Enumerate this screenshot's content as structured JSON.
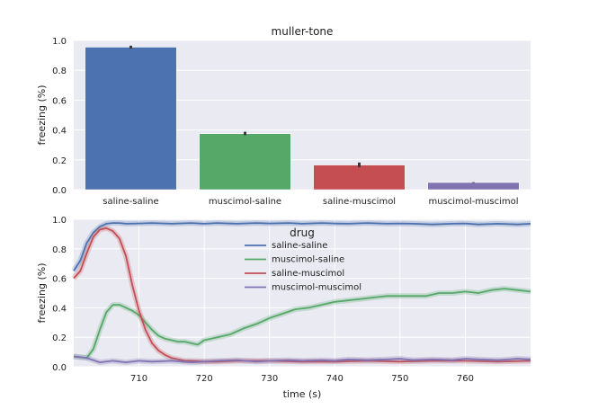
{
  "chart_data": [
    {
      "type": "bar",
      "title": "muller-tone",
      "ylabel": "freezing (%)",
      "xlabel": "",
      "ylim": [
        0,
        1.0
      ],
      "yticks": [
        "0.0",
        "0.2",
        "0.4",
        "0.6",
        "0.8",
        "1.0"
      ],
      "categories": [
        "saline-saline",
        "muscimol-saline",
        "saline-muscimol",
        "muscimol-muscimol"
      ],
      "values": [
        0.955,
        0.375,
        0.165,
        0.048
      ],
      "error": [
        [
          0.945,
          0.965
        ],
        [
          0.365,
          0.388
        ],
        [
          0.15,
          0.182
        ],
        [
          0.046,
          0.05
        ]
      ],
      "colors": [
        "#4c72b0",
        "#55a868",
        "#c44e52",
        "#8172b2"
      ],
      "grid": true
    },
    {
      "type": "line",
      "title": "",
      "xlabel": "time (s)",
      "ylabel": "freezing (%)",
      "xlim": [
        700,
        770
      ],
      "ylim": [
        0,
        1.0
      ],
      "xticks": [
        "710",
        "720",
        "730",
        "740",
        "750",
        "760"
      ],
      "yticks": [
        "0.0",
        "0.2",
        "0.4",
        "0.6",
        "0.8",
        "1.0"
      ],
      "legend": {
        "title": "drug",
        "position": "upper-center"
      },
      "grid": true,
      "series": [
        {
          "name": "saline-saline",
          "color": "#4c72b0",
          "x": [
            700,
            701,
            702,
            703,
            704,
            705,
            706,
            707,
            708,
            710,
            712,
            715,
            718,
            720,
            722,
            725,
            728,
            730,
            733,
            735,
            738,
            740,
            742,
            745,
            748,
            750,
            752,
            755,
            758,
            760,
            762,
            765,
            768,
            770
          ],
          "y": [
            0.65,
            0.72,
            0.84,
            0.91,
            0.95,
            0.97,
            0.975,
            0.975,
            0.97,
            0.972,
            0.975,
            0.97,
            0.975,
            0.97,
            0.975,
            0.97,
            0.975,
            0.972,
            0.975,
            0.97,
            0.975,
            0.972,
            0.97,
            0.975,
            0.97,
            0.972,
            0.97,
            0.965,
            0.97,
            0.972,
            0.965,
            0.97,
            0.965,
            0.97
          ]
        },
        {
          "name": "muscimol-saline",
          "color": "#55a868",
          "x": [
            700,
            702,
            703,
            704,
            705,
            706,
            707,
            708,
            709,
            710,
            711,
            712,
            713,
            714,
            715,
            716,
            717,
            718,
            719,
            720,
            722,
            724,
            726,
            728,
            730,
            732,
            734,
            736,
            738,
            740,
            742,
            744,
            746,
            748,
            750,
            752,
            754,
            756,
            758,
            760,
            762,
            764,
            766,
            768,
            770
          ],
          "y": [
            0.07,
            0.06,
            0.12,
            0.25,
            0.37,
            0.42,
            0.42,
            0.4,
            0.38,
            0.35,
            0.3,
            0.25,
            0.21,
            0.19,
            0.18,
            0.17,
            0.17,
            0.16,
            0.15,
            0.18,
            0.2,
            0.22,
            0.26,
            0.29,
            0.33,
            0.36,
            0.39,
            0.4,
            0.42,
            0.44,
            0.45,
            0.46,
            0.47,
            0.48,
            0.48,
            0.48,
            0.48,
            0.5,
            0.5,
            0.51,
            0.5,
            0.52,
            0.53,
            0.52,
            0.51
          ]
        },
        {
          "name": "saline-muscimol",
          "color": "#c44e52",
          "x": [
            700,
            701,
            702,
            703,
            704,
            705,
            706,
            707,
            708,
            709,
            710,
            711,
            712,
            713,
            714,
            715,
            716,
            717,
            718,
            720,
            722,
            725,
            730,
            735,
            740,
            745,
            750,
            755,
            760,
            765,
            770
          ],
          "y": [
            0.6,
            0.65,
            0.77,
            0.88,
            0.93,
            0.94,
            0.92,
            0.87,
            0.75,
            0.55,
            0.38,
            0.25,
            0.16,
            0.11,
            0.08,
            0.06,
            0.05,
            0.04,
            0.04,
            0.035,
            0.035,
            0.04,
            0.04,
            0.035,
            0.035,
            0.04,
            0.035,
            0.04,
            0.04,
            0.035,
            0.04
          ]
        },
        {
          "name": "muscimol-muscimol",
          "color": "#8172b2",
          "x": [
            700,
            702,
            704,
            706,
            708,
            710,
            712,
            715,
            718,
            720,
            722,
            725,
            728,
            730,
            733,
            735,
            738,
            740,
            742,
            745,
            748,
            750,
            752,
            755,
            758,
            760,
            762,
            765,
            768,
            770
          ],
          "y": [
            0.07,
            0.06,
            0.03,
            0.04,
            0.03,
            0.04,
            0.035,
            0.04,
            0.03,
            0.035,
            0.04,
            0.045,
            0.035,
            0.04,
            0.045,
            0.04,
            0.045,
            0.04,
            0.05,
            0.045,
            0.05,
            0.055,
            0.045,
            0.05,
            0.045,
            0.055,
            0.05,
            0.045,
            0.055,
            0.05
          ]
        }
      ]
    }
  ]
}
